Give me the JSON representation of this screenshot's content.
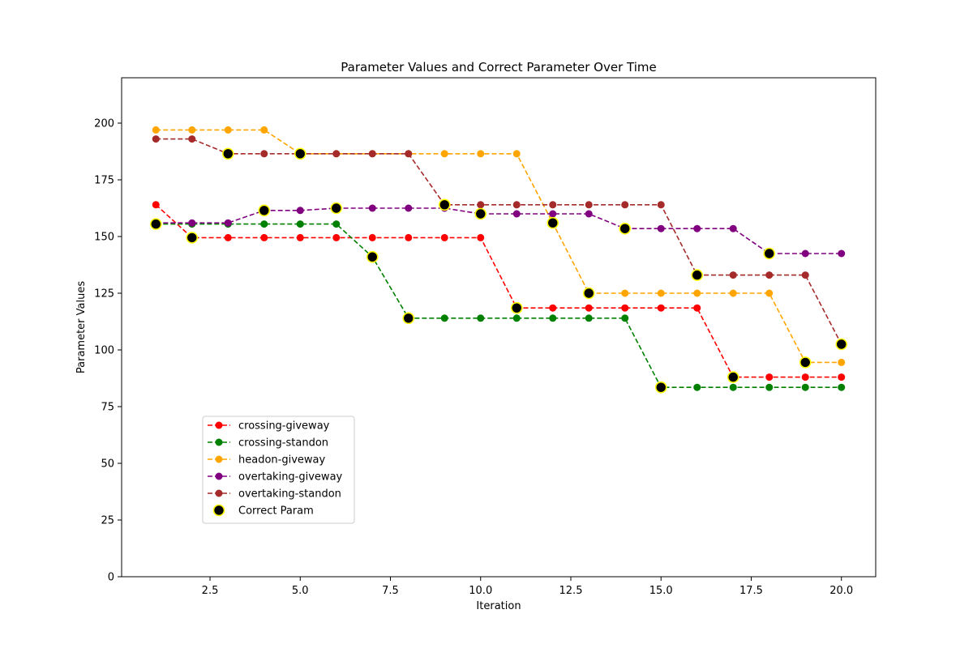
{
  "chart_data": {
    "type": "line",
    "title": "Parameter Values and Correct Parameter Over Time",
    "xlabel": "Iteration",
    "ylabel": "Parameter Values",
    "xlim": [
      0.05,
      20.95
    ],
    "ylim": [
      0,
      220
    ],
    "xticks": [
      2.5,
      5.0,
      7.5,
      10.0,
      12.5,
      15.0,
      17.5,
      20.0
    ],
    "xtick_labels": [
      "2.5",
      "5.0",
      "7.5",
      "10.0",
      "12.5",
      "15.0",
      "17.5",
      "20.0"
    ],
    "yticks": [
      0,
      25,
      50,
      75,
      100,
      125,
      150,
      175,
      200
    ],
    "ytick_labels": [
      "0",
      "25",
      "50",
      "75",
      "100",
      "125",
      "150",
      "175",
      "200"
    ],
    "grid": false,
    "legend_position": "lower-left",
    "x": [
      1,
      2,
      3,
      4,
      5,
      6,
      7,
      8,
      9,
      10,
      11,
      12,
      13,
      14,
      15,
      16,
      17,
      18,
      19,
      20
    ],
    "series": [
      {
        "name": "crossing-giveway",
        "color": "#ff0000",
        "style": "dashed",
        "marker": "circle",
        "values": [
          164,
          149.5,
          149.5,
          149.5,
          149.5,
          149.5,
          149.5,
          149.5,
          149.5,
          149.5,
          118.5,
          118.5,
          118.5,
          118.5,
          118.5,
          118.5,
          88,
          88,
          88,
          88
        ]
      },
      {
        "name": "crossing-standon",
        "color": "#008000",
        "style": "dashed",
        "marker": "circle",
        "values": [
          155.5,
          155.5,
          155.5,
          155.5,
          155.5,
          155.5,
          141,
          114,
          114,
          114,
          114,
          114,
          114,
          114,
          83.5,
          83.5,
          83.5,
          83.5,
          83.5,
          83.5
        ]
      },
      {
        "name": "headon-giveway",
        "color": "#ffa500",
        "style": "dashed",
        "marker": "circle",
        "values": [
          197,
          197,
          197,
          197,
          186.5,
          186.5,
          186.5,
          186.5,
          186.5,
          186.5,
          186.5,
          156,
          125,
          125,
          125,
          125,
          125,
          125,
          94.5,
          94.5
        ]
      },
      {
        "name": "overtaking-giveway",
        "color": "#800080",
        "style": "dashed",
        "marker": "circle",
        "values": [
          156,
          156,
          156,
          161.5,
          161.5,
          162.5,
          162.5,
          162.5,
          162.5,
          160,
          160,
          160,
          160,
          153.5,
          153.5,
          153.5,
          153.5,
          142.5,
          142.5,
          142.5
        ]
      },
      {
        "name": "overtaking-standon",
        "color": "#a52a2a",
        "style": "dashed",
        "marker": "circle",
        "values": [
          193,
          193,
          186.5,
          186.5,
          186.5,
          186.5,
          186.5,
          186.5,
          164,
          164,
          164,
          164,
          164,
          164,
          164,
          133,
          133,
          133,
          133,
          102.5
        ]
      }
    ],
    "correct_param": {
      "name": "Correct Param",
      "fill": "#000000",
      "edge": "#ffff00",
      "points": [
        [
          1,
          155.5
        ],
        [
          2,
          149.5
        ],
        [
          3,
          186.5
        ],
        [
          4,
          161.5
        ],
        [
          5,
          186.5
        ],
        [
          6,
          162.5
        ],
        [
          7,
          141
        ],
        [
          8,
          114
        ],
        [
          9,
          164
        ],
        [
          10,
          160
        ],
        [
          11,
          118.5
        ],
        [
          12,
          156
        ],
        [
          13,
          125
        ],
        [
          14,
          153.5
        ],
        [
          15,
          83.5
        ],
        [
          16,
          133
        ],
        [
          17,
          88
        ],
        [
          18,
          142.5
        ],
        [
          19,
          94.5
        ],
        [
          20,
          102.5
        ]
      ]
    }
  }
}
